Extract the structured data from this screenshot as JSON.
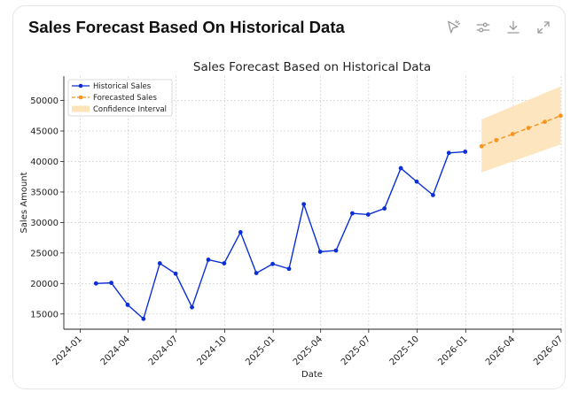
{
  "card": {
    "title": "Sales Forecast Based On Historical Data",
    "toolbar": [
      {
        "icon": "ask-ai-icon"
      },
      {
        "icon": "settings-sliders-icon"
      },
      {
        "icon": "download-icon"
      },
      {
        "icon": "expand-icon"
      }
    ]
  },
  "colors": {
    "historical": "#0b2fd6",
    "forecast": "#f7931e",
    "confidence": "#fde3b8",
    "grid": "#c8c8c8"
  },
  "chart_data": {
    "type": "line",
    "title": "Sales Forecast Based on Historical Data",
    "xlabel": "Date",
    "ylabel": "Sales Amount",
    "x_ticks": [
      "2024-01",
      "2024-04",
      "2024-07",
      "2024-10",
      "2025-01",
      "2025-04",
      "2025-07",
      "2025-10",
      "2026-01",
      "2026-04",
      "2026-07"
    ],
    "y_ticks": [
      15000,
      20000,
      25000,
      30000,
      35000,
      40000,
      45000,
      50000
    ],
    "ylim": [
      12500,
      54000
    ],
    "xlim": [
      "2023-12",
      "2026-07"
    ],
    "grid": true,
    "legend_position": "top-left",
    "series": [
      {
        "name": "Historical Sales",
        "style": "solid",
        "x": [
          "2024-01-31",
          "2024-02-29",
          "2024-03-31",
          "2024-04-30",
          "2024-05-31",
          "2024-06-30",
          "2024-07-31",
          "2024-08-31",
          "2024-09-30",
          "2024-10-31",
          "2024-11-30",
          "2024-12-31",
          "2025-01-31",
          "2025-02-28",
          "2025-03-31",
          "2025-04-30",
          "2025-05-31",
          "2025-06-30",
          "2025-07-31",
          "2025-08-31",
          "2025-09-30",
          "2025-10-31",
          "2025-11-30",
          "2025-12-31"
        ],
        "y": [
          20000,
          20100,
          16500,
          14200,
          23300,
          21600,
          16100,
          23900,
          23300,
          28400,
          21700,
          23200,
          22400,
          33000,
          25200,
          25400,
          31500,
          31300,
          32300,
          38900,
          36700,
          34500,
          41400,
          41600
        ]
      },
      {
        "name": "Forecasted Sales",
        "style": "dashed",
        "x": [
          "2026-01-31",
          "2026-02-28",
          "2026-03-31",
          "2026-04-30",
          "2026-05-31",
          "2026-06-30"
        ],
        "y": [
          42500,
          43500,
          44500,
          45500,
          46500,
          47500
        ]
      }
    ],
    "confidence_interval": {
      "name": "Confidence Interval",
      "x": [
        "2026-01-31",
        "2026-06-30"
      ],
      "lower": [
        38200,
        42800
      ],
      "upper": [
        46900,
        52300
      ]
    }
  }
}
